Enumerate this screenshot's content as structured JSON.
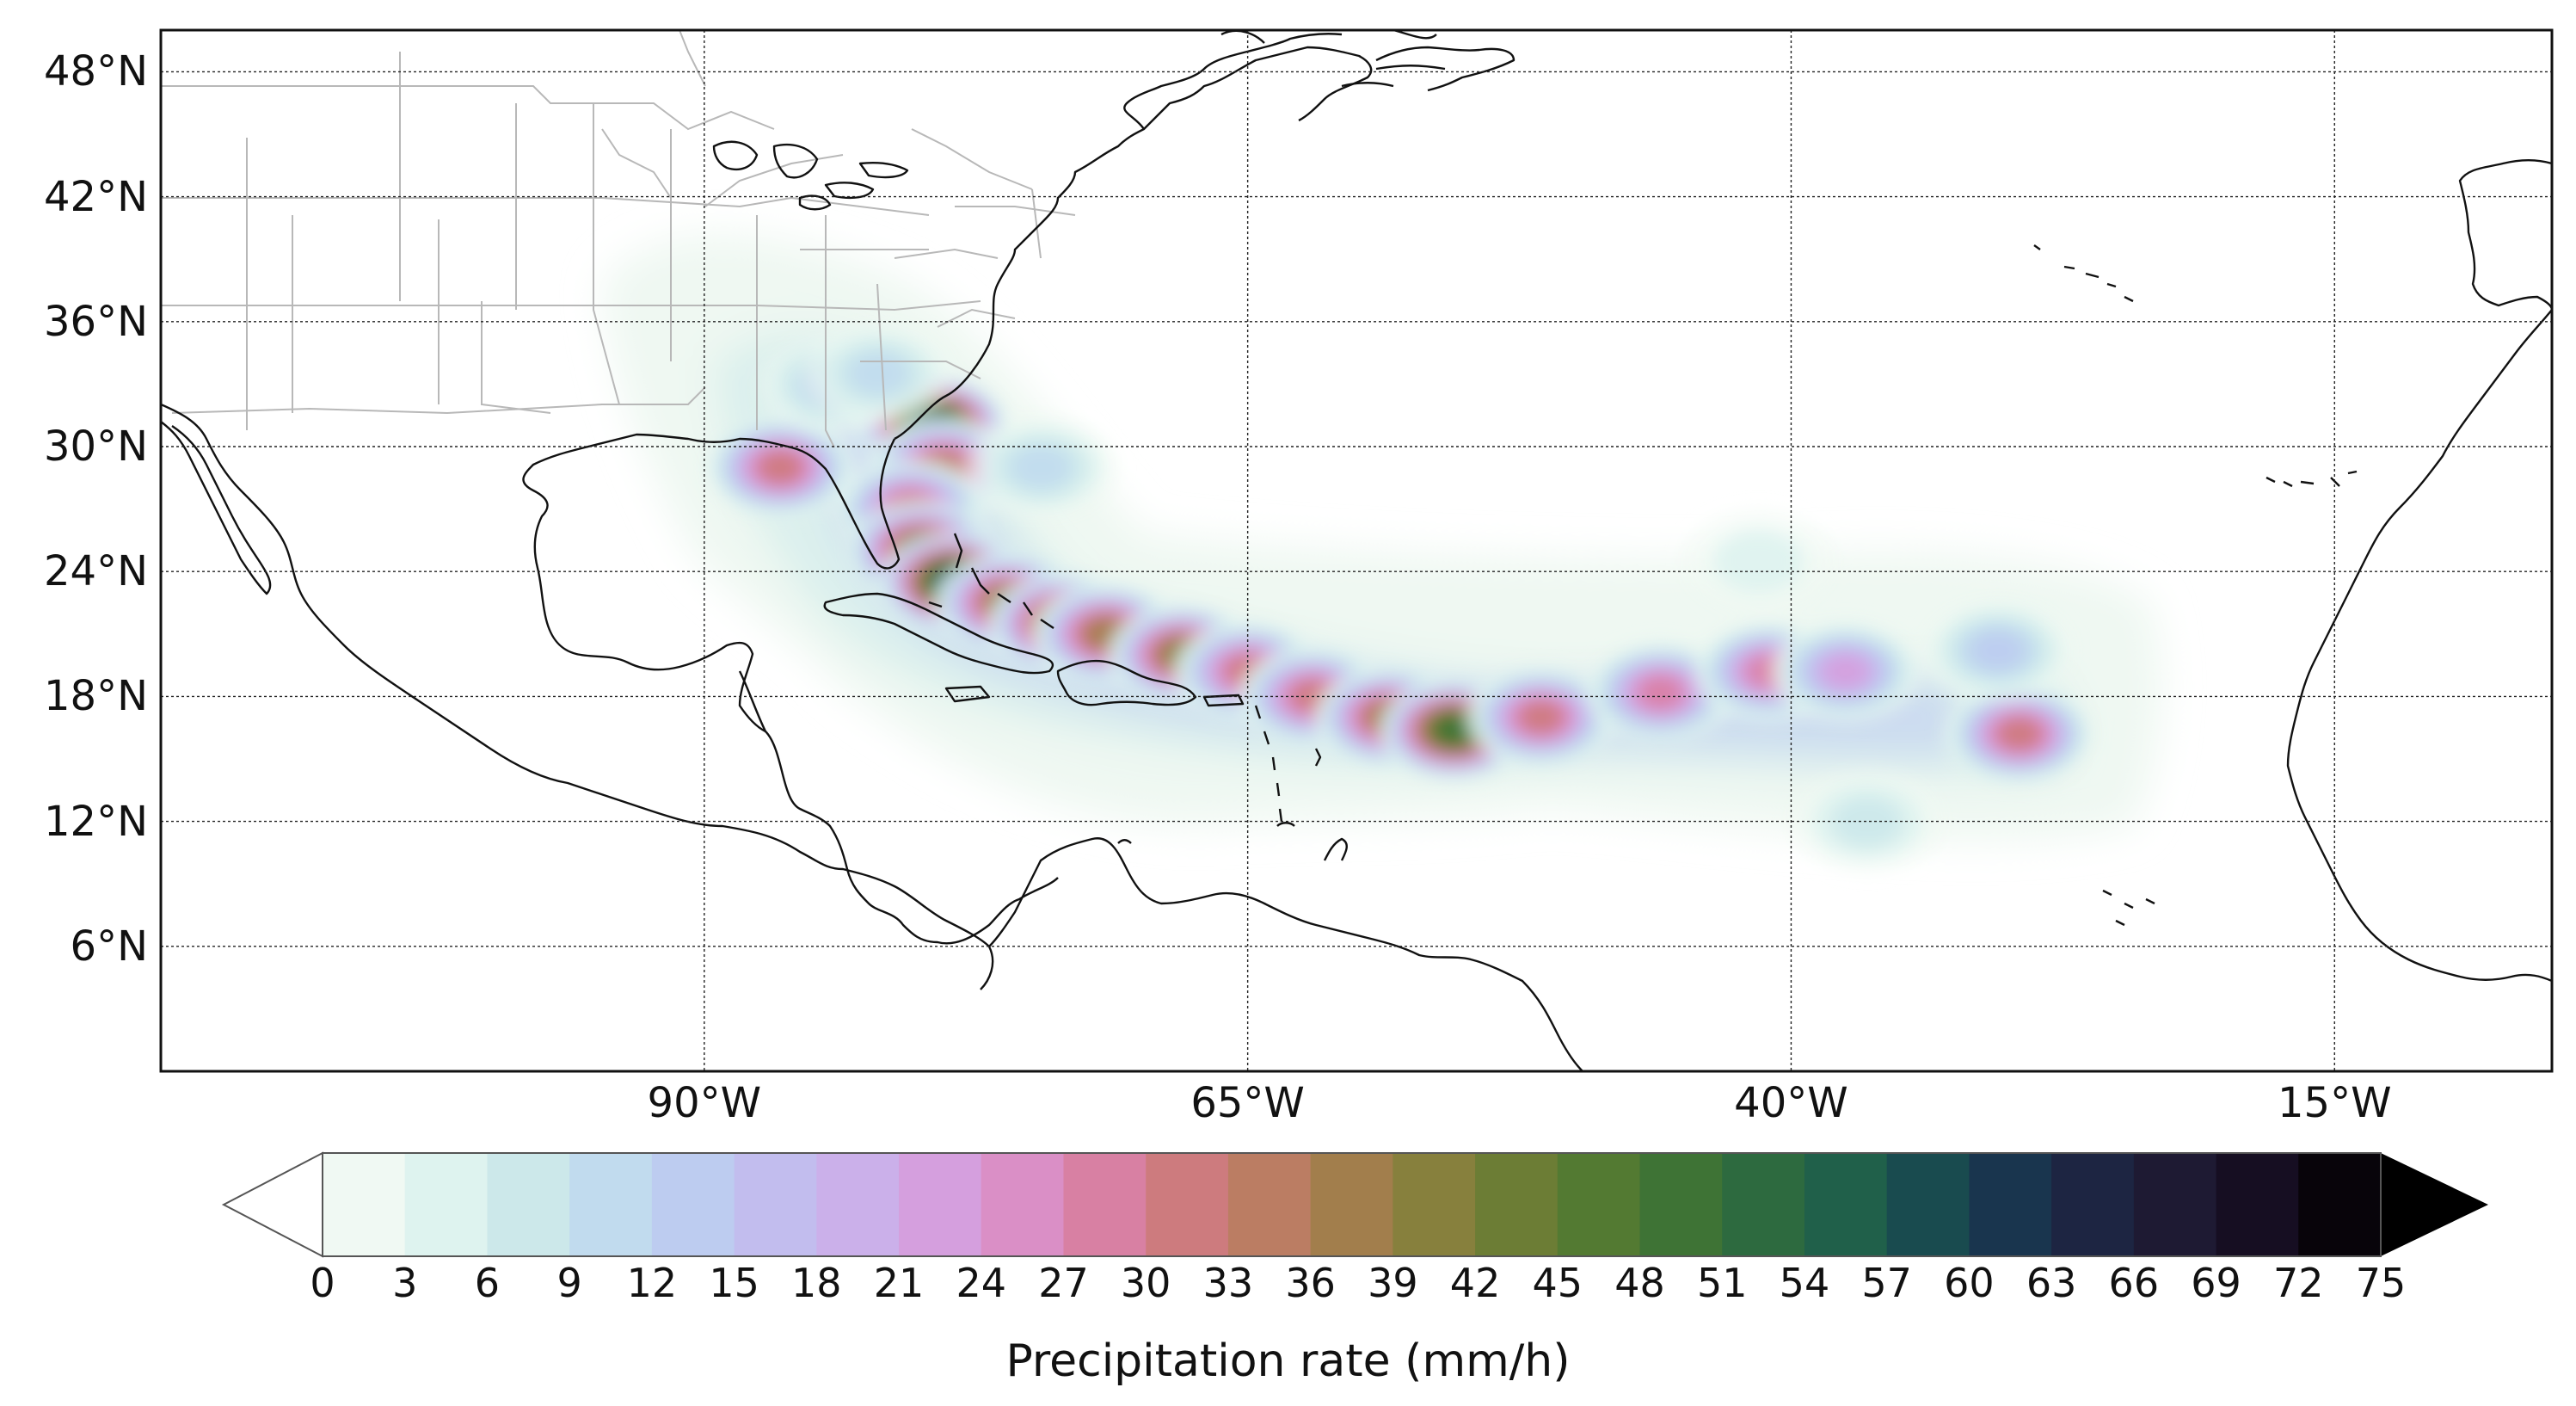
{
  "map": {
    "lat_labels": [
      {
        "text": "48°N",
        "lat": 48
      },
      {
        "text": "42°N",
        "lat": 42
      },
      {
        "text": "36°N",
        "lat": 36
      },
      {
        "text": "30°N",
        "lat": 30
      },
      {
        "text": "24°N",
        "lat": 24
      },
      {
        "text": "18°N",
        "lat": 18
      },
      {
        "text": "12°N",
        "lat": 12
      },
      {
        "text": "6°N",
        "lat": 6
      }
    ],
    "lon_labels": [
      {
        "text": "90°W",
        "lon": -90
      },
      {
        "text": "65°W",
        "lon": -65
      },
      {
        "text": "40°W",
        "lon": -40
      },
      {
        "text": "15°W",
        "lon": -15
      }
    ],
    "extent": {
      "lon_min": -115,
      "lon_max": -5,
      "lat_min": 0,
      "lat_max": 50
    },
    "rain_cells": [
      {
        "lon": -79.5,
        "lat": 31.0,
        "value": 58
      },
      {
        "lon": -79.0,
        "lat": 29.0,
        "value": 33
      },
      {
        "lon": -80.5,
        "lat": 27.0,
        "value": 30
      },
      {
        "lon": -80.0,
        "lat": 25.0,
        "value": 44
      },
      {
        "lon": -78.5,
        "lat": 23.5,
        "value": 57
      },
      {
        "lon": -76.0,
        "lat": 22.5,
        "value": 40
      },
      {
        "lon": -73.5,
        "lat": 21.5,
        "value": 45
      },
      {
        "lon": -71.5,
        "lat": 21.0,
        "value": 38
      },
      {
        "lon": -68.0,
        "lat": 20.0,
        "value": 40
      },
      {
        "lon": -65.0,
        "lat": 19.2,
        "value": 30
      },
      {
        "lon": -62.0,
        "lat": 18.0,
        "value": 32
      },
      {
        "lon": -58.5,
        "lat": 17.0,
        "value": 38
      },
      {
        "lon": -55.5,
        "lat": 16.4,
        "value": 48
      },
      {
        "lon": -51.5,
        "lat": 17.0,
        "value": 30
      },
      {
        "lon": -46.0,
        "lat": 18.2,
        "value": 27
      },
      {
        "lon": -41.0,
        "lat": 19.2,
        "value": 28
      },
      {
        "lon": -37.5,
        "lat": 19.2,
        "value": 22
      },
      {
        "lon": -29.5,
        "lat": 16.2,
        "value": 30
      },
      {
        "lon": -30.5,
        "lat": 20.2,
        "value": 14
      },
      {
        "lon": -86.5,
        "lat": 29.0,
        "value": 30
      },
      {
        "lon": -84.0,
        "lat": 33.0,
        "value": 13
      },
      {
        "lon": -82.0,
        "lat": 33.5,
        "value": 10
      },
      {
        "lon": -74.5,
        "lat": 29.0,
        "value": 10
      },
      {
        "lon": -41.5,
        "lat": 24.5,
        "value": 4
      },
      {
        "lon": -36.5,
        "lat": 12.0,
        "value": 8
      }
    ]
  },
  "colorbar": {
    "ticks": [
      "0",
      "3",
      "6",
      "9",
      "12",
      "15",
      "18",
      "21",
      "24",
      "27",
      "30",
      "33",
      "36",
      "39",
      "42",
      "45",
      "48",
      "51",
      "54",
      "57",
      "60",
      "63",
      "66",
      "69",
      "72",
      "75"
    ],
    "colors": [
      "#f0f9f3",
      "#def3ef",
      "#cce8ea",
      "#c1dbee",
      "#bdccf0",
      "#c2bdee",
      "#cbb0ea",
      "#d59fde",
      "#da8fc6",
      "#d880a3",
      "#cd7b7e",
      "#bb7d63",
      "#a27e4c",
      "#87803d",
      "#6c7d35",
      "#537a32",
      "#3e7335",
      "#2d6a3f",
      "#20604a",
      "#194b4f",
      "#19354e",
      "#1d2542",
      "#1e1a33",
      "#160e22",
      "#08040a"
    ],
    "label": "Precipitation rate (mm/h)"
  }
}
